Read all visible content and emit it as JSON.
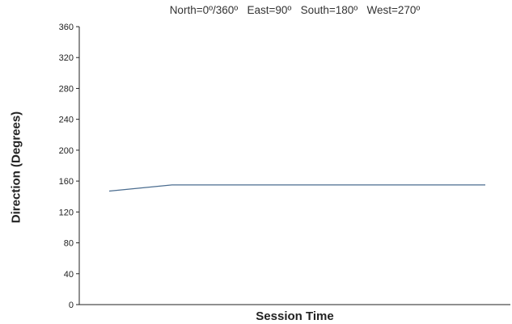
{
  "chart_data": {
    "type": "line",
    "title": "North=0º/360º   East=90º   South=180º   West=270º",
    "xlabel": "Session Time",
    "ylabel": "Direction (Degrees)",
    "ylim": [
      0,
      360
    ],
    "yticks": [
      0,
      40,
      80,
      120,
      160,
      200,
      240,
      280,
      320,
      360
    ],
    "x": [
      1,
      2,
      3,
      4,
      5,
      6,
      7
    ],
    "series": [
      {
        "values": [
          147,
          155,
          155,
          155,
          155,
          155,
          155
        ]
      }
    ],
    "grid": false,
    "line_color": "#4a6c8f"
  }
}
